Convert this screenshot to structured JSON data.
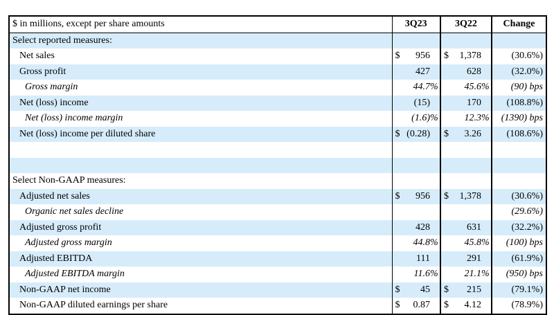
{
  "header": {
    "label": "$ in millions, except per share amounts",
    "col_a": "3Q23",
    "col_b": "3Q22",
    "col_c": "Change"
  },
  "rows": [
    {
      "label": "Select reported measures:",
      "level": 0,
      "a_cur": "",
      "a": "",
      "a_suf": "",
      "b_cur": "",
      "b": "",
      "b_suf": "",
      "change": "",
      "italic": false,
      "shade": true
    },
    {
      "label": "Net sales",
      "level": 1,
      "a_cur": "$",
      "a": "956",
      "a_suf": "",
      "b_cur": "$",
      "b": "1,378",
      "b_suf": "",
      "change": "(30.6%)",
      "italic": false,
      "shade": false
    },
    {
      "label": "Gross profit",
      "level": 1,
      "a_cur": "",
      "a": "427",
      "a_suf": "",
      "b_cur": "",
      "b": "628",
      "b_suf": "",
      "change": "(32.0%)",
      "italic": false,
      "shade": true
    },
    {
      "label": "Gross margin",
      "level": 2,
      "a_cur": "",
      "a": "44.7",
      "a_suf": "%",
      "b_cur": "",
      "b": "45.6",
      "b_suf": "%",
      "change": "(90) bps",
      "italic": true,
      "shade": false
    },
    {
      "label": "Net (loss) income",
      "level": 1,
      "a_cur": "",
      "a": "(15)",
      "a_suf": "",
      "b_cur": "",
      "b": "170",
      "b_suf": "",
      "change": "(108.8%)",
      "italic": false,
      "shade": true
    },
    {
      "label": "Net (loss) income margin",
      "level": 2,
      "a_cur": "",
      "a": "(1.6)",
      "a_suf": "%",
      "b_cur": "",
      "b": "12.3",
      "b_suf": "%",
      "change": "(1390) bps",
      "italic": true,
      "shade": false
    },
    {
      "label": "Net (loss) income per diluted share",
      "level": 1,
      "a_cur": "$",
      "a": "(0.28)",
      "a_suf": "",
      "b_cur": "$",
      "b": "3.26",
      "b_suf": "",
      "change": "(108.6%)",
      "italic": false,
      "shade": true
    },
    {
      "label": "",
      "level": 0,
      "a_cur": "",
      "a": "",
      "a_suf": "",
      "b_cur": "",
      "b": "",
      "b_suf": "",
      "change": "",
      "italic": false,
      "shade": false
    },
    {
      "label": "",
      "level": 0,
      "a_cur": "",
      "a": "",
      "a_suf": "",
      "b_cur": "",
      "b": "",
      "b_suf": "",
      "change": "",
      "italic": false,
      "shade": true
    },
    {
      "label": "Select Non-GAAP measures:",
      "level": 0,
      "a_cur": "",
      "a": "",
      "a_suf": "",
      "b_cur": "",
      "b": "",
      "b_suf": "",
      "change": "",
      "italic": false,
      "shade": false
    },
    {
      "label": "Adjusted net sales",
      "level": 1,
      "a_cur": "$",
      "a": "956",
      "a_suf": "",
      "b_cur": "$",
      "b": "1,378",
      "b_suf": "",
      "change": "(30.6%)",
      "italic": false,
      "shade": true
    },
    {
      "label": "Organic net sales decline",
      "level": 2,
      "a_cur": "",
      "a": "",
      "a_suf": "",
      "b_cur": "",
      "b": "",
      "b_suf": "",
      "change": "(29.6%)",
      "italic": true,
      "shade": false
    },
    {
      "label": "Adjusted gross profit",
      "level": 1,
      "a_cur": "",
      "a": "428",
      "a_suf": "",
      "b_cur": "",
      "b": "631",
      "b_suf": "",
      "change": "(32.2%)",
      "italic": false,
      "shade": true
    },
    {
      "label": "Adjusted gross margin",
      "level": 2,
      "a_cur": "",
      "a": "44.8",
      "a_suf": "%",
      "b_cur": "",
      "b": "45.8",
      "b_suf": "%",
      "change": "(100) bps",
      "italic": true,
      "shade": false
    },
    {
      "label": "Adjusted EBITDA",
      "level": 1,
      "a_cur": "",
      "a": "111",
      "a_suf": "",
      "b_cur": "",
      "b": "291",
      "b_suf": "",
      "change": "(61.9%)",
      "italic": false,
      "shade": true
    },
    {
      "label": "Adjusted EBITDA margin",
      "level": 2,
      "a_cur": "",
      "a": "11.6",
      "a_suf": "%",
      "b_cur": "",
      "b": "21.1",
      "b_suf": "%",
      "change": "(950) bps",
      "italic": true,
      "shade": false
    },
    {
      "label": "Non-GAAP net income",
      "level": 1,
      "a_cur": "$",
      "a": "45",
      "a_suf": "",
      "b_cur": "$",
      "b": "215",
      "b_suf": "",
      "change": "(79.1%)",
      "italic": false,
      "shade": true
    },
    {
      "label": "Non-GAAP diluted earnings per share",
      "level": 1,
      "a_cur": "$",
      "a": "0.87",
      "a_suf": "",
      "b_cur": "$",
      "b": "4.12",
      "b_suf": "",
      "change": "(78.9%)",
      "italic": false,
      "shade": false
    }
  ]
}
